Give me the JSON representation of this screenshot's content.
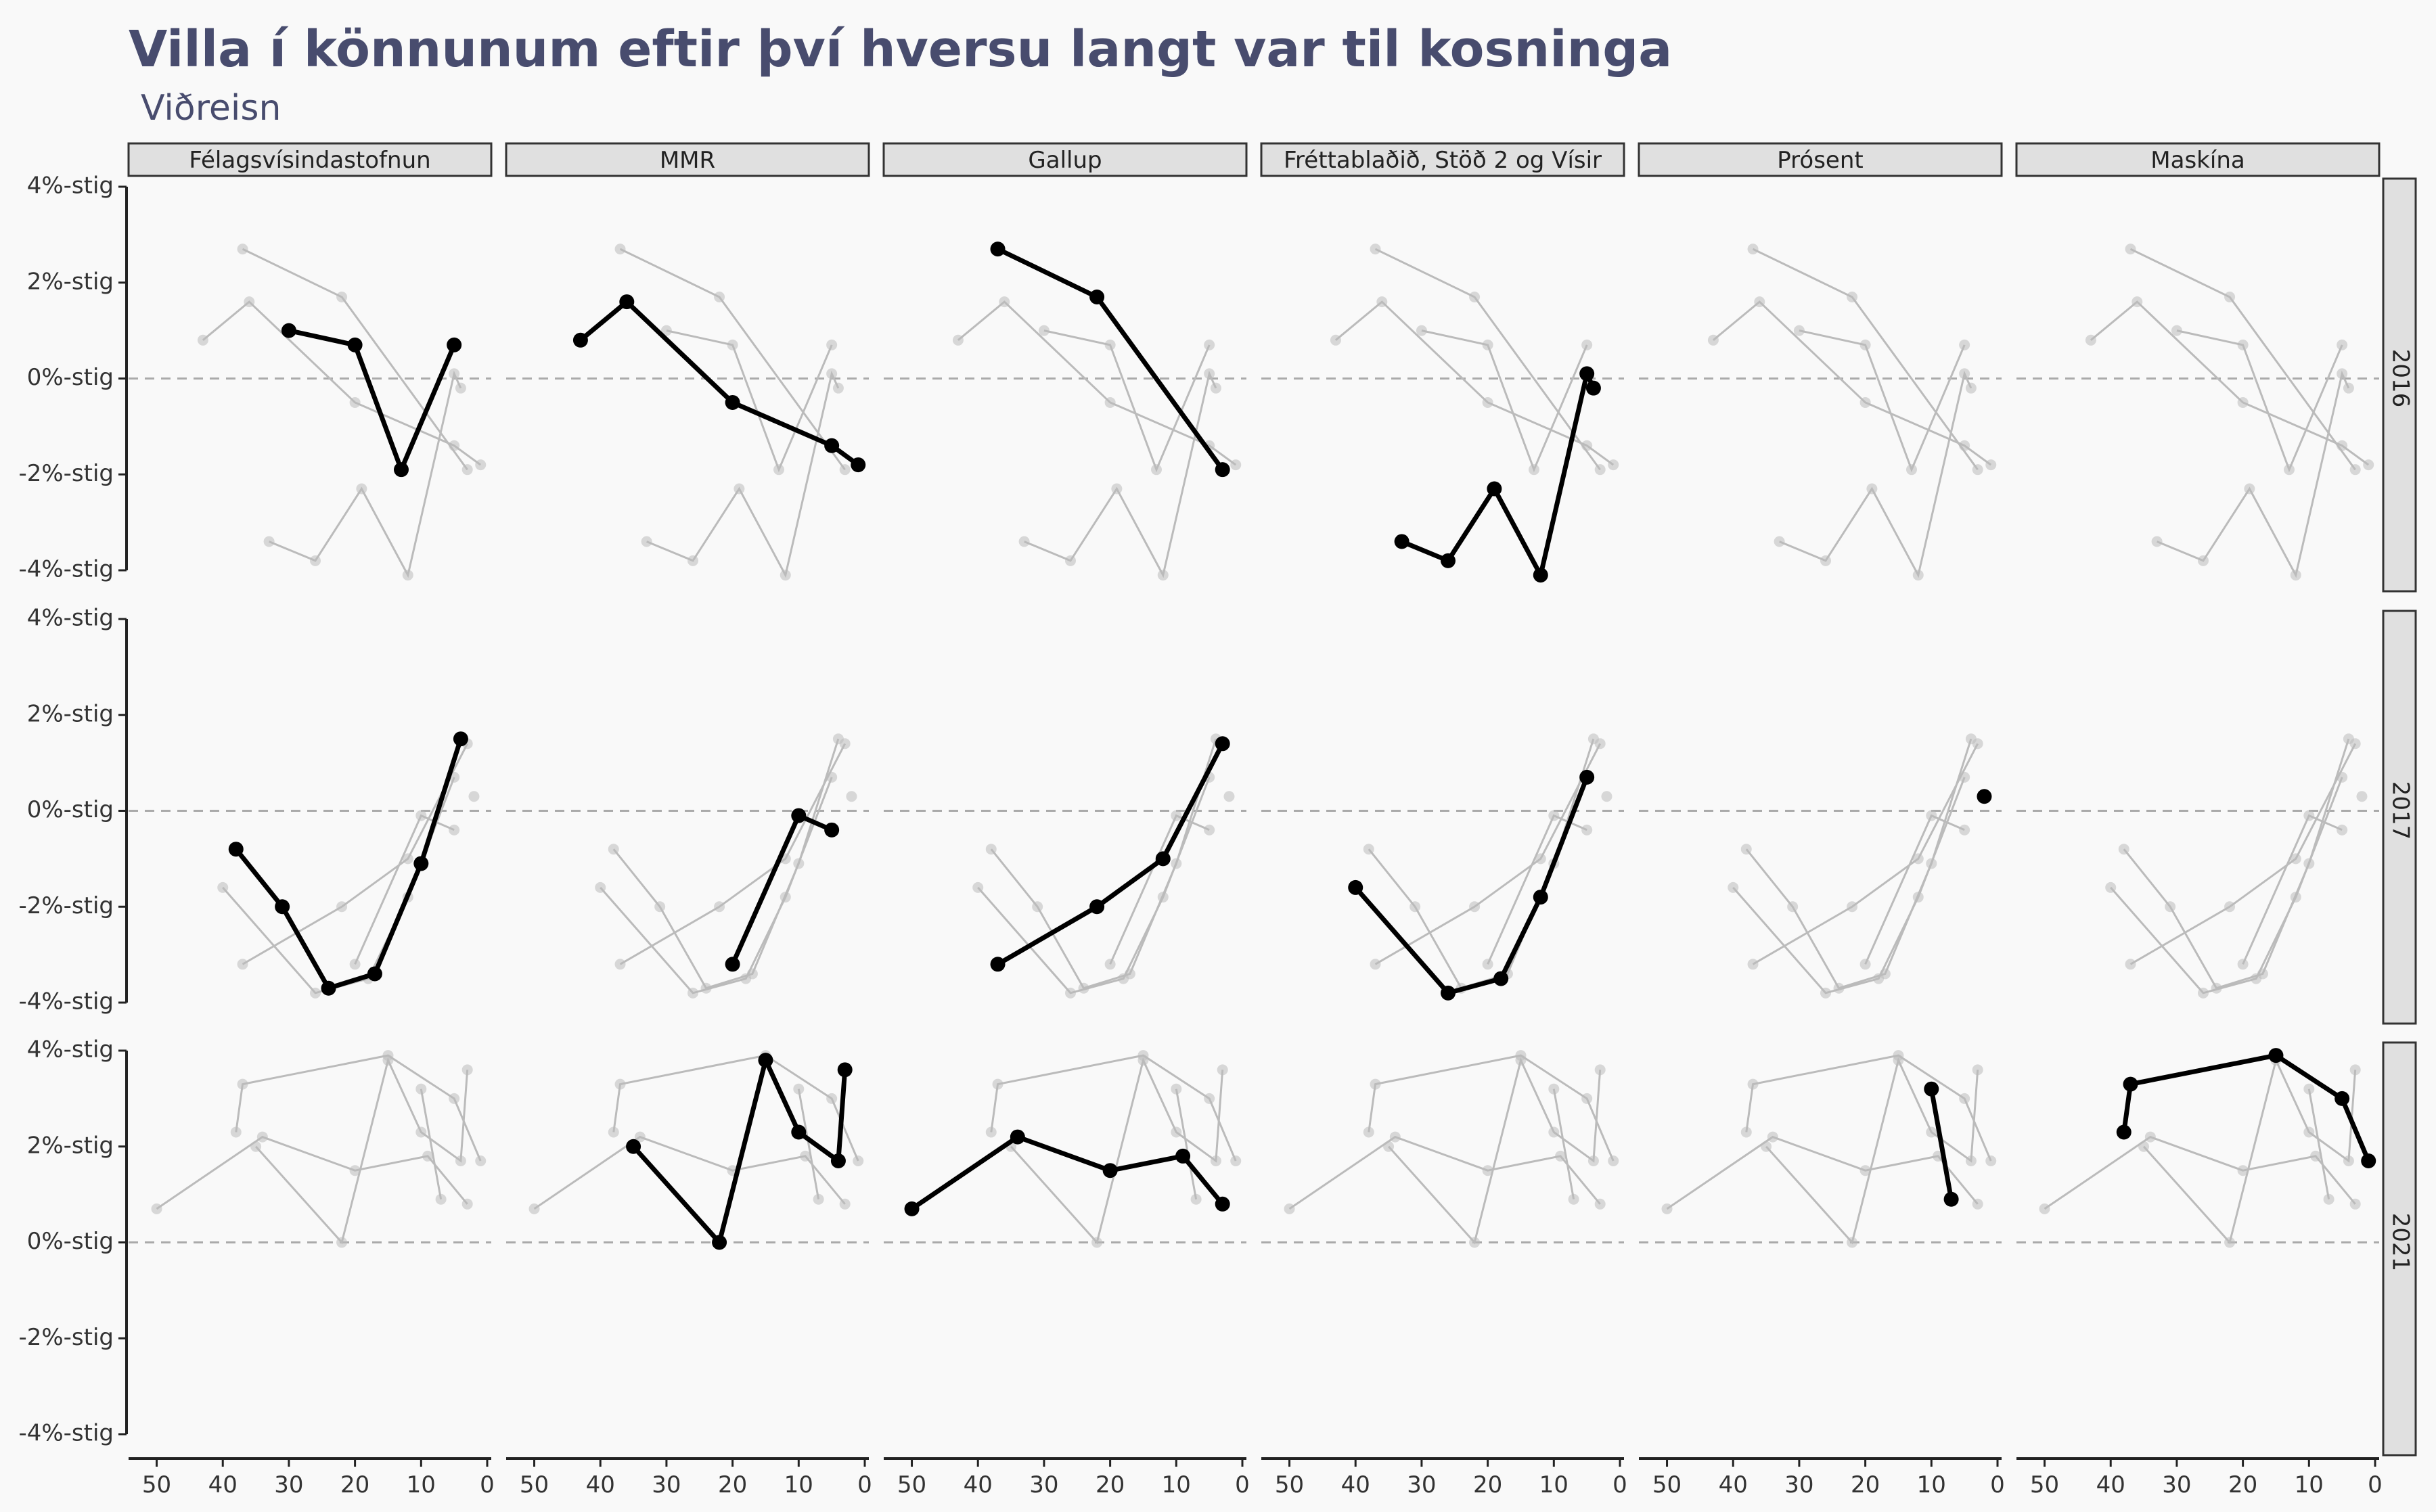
{
  "chart_data": {
    "type": "line",
    "title": "Villa í könnunum eftir því hversu langt var til kosninga",
    "subtitle": "Viðreisn",
    "xlabel": "",
    "ylabel": "",
    "xlim": [
      52,
      0
    ],
    "ylim": [
      -4,
      4
    ],
    "x_ticks": [
      "50",
      "40",
      "30",
      "20",
      "10",
      "0"
    ],
    "y_ticks": [
      "-4%-stig",
      "-2%-stig",
      "0%-stig",
      "2%-stig",
      "4%-stig"
    ],
    "reference_line": 0,
    "grid": false,
    "facet_columns": [
      "Félagsvísindastofnun",
      "MMR",
      "Gallup",
      "Fréttablaðið, Stöð 2 og Vísir",
      "Prósent",
      "Maskína"
    ],
    "facet_rows": [
      "2016",
      "2017",
      "2021"
    ],
    "highlight_color": "#000000",
    "background_color": "#bbbbbb",
    "series": [
      {
        "pollster": "Félagsvísindastofnun",
        "year": "2016",
        "x": [
          30,
          20,
          13,
          5
        ],
        "y": [
          1.0,
          0.7,
          -1.9,
          0.7
        ]
      },
      {
        "pollster": "MMR",
        "year": "2016",
        "x": [
          43,
          36,
          20,
          5,
          1
        ],
        "y": [
          0.8,
          1.6,
          -0.5,
          -1.4,
          -1.8
        ]
      },
      {
        "pollster": "Gallup",
        "year": "2016",
        "x": [
          37,
          22,
          3
        ],
        "y": [
          2.7,
          1.7,
          -1.9
        ]
      },
      {
        "pollster": "Fréttablaðið, Stöð 2 og Vísir",
        "year": "2016",
        "x": [
          33,
          26,
          19,
          12,
          5,
          4
        ],
        "y": [
          -3.4,
          -3.8,
          -2.3,
          -4.1,
          0.1,
          -0.2
        ]
      },
      {
        "pollster": "Félagsvísindastofnun",
        "year": "2017",
        "x": [
          38,
          31,
          24,
          17,
          10,
          4
        ],
        "y": [
          -0.8,
          -2.0,
          -3.7,
          -3.4,
          -1.1,
          1.5
        ]
      },
      {
        "pollster": "MMR",
        "year": "2017",
        "x": [
          20,
          10,
          5
        ],
        "y": [
          -3.2,
          -0.1,
          -0.4
        ]
      },
      {
        "pollster": "Gallup",
        "year": "2017",
        "x": [
          37,
          22,
          12,
          3
        ],
        "y": [
          -3.2,
          -2.0,
          -1.0,
          1.4
        ]
      },
      {
        "pollster": "Fréttablaðið, Stöð 2 og Vísir",
        "year": "2017",
        "x": [
          40,
          26,
          18,
          12,
          5
        ],
        "y": [
          -1.6,
          -3.8,
          -3.5,
          -1.8,
          0.7
        ]
      },
      {
        "pollster": "Prósent",
        "year": "2017",
        "x": [
          2
        ],
        "y": [
          0.3
        ]
      },
      {
        "pollster": "Félagsvísindastofnun",
        "year": "2021",
        "x": [],
        "y": []
      },
      {
        "pollster": "MMR",
        "year": "2021",
        "x": [
          35,
          22,
          15,
          10,
          4,
          3
        ],
        "y": [
          2.0,
          0.0,
          3.8,
          2.3,
          1.7,
          3.6
        ]
      },
      {
        "pollster": "Gallup",
        "year": "2021",
        "x": [
          50,
          34,
          20,
          9,
          3
        ],
        "y": [
          0.7,
          2.2,
          1.5,
          1.8,
          0.8
        ]
      },
      {
        "pollster": "Prósent",
        "year": "2021",
        "x": [
          10,
          7
        ],
        "y": [
          3.2,
          0.9
        ]
      },
      {
        "pollster": "Maskína",
        "year": "2021",
        "x": [
          38,
          37,
          15,
          5,
          1
        ],
        "y": [
          2.3,
          3.3,
          3.9,
          3.0,
          1.7
        ]
      }
    ]
  }
}
